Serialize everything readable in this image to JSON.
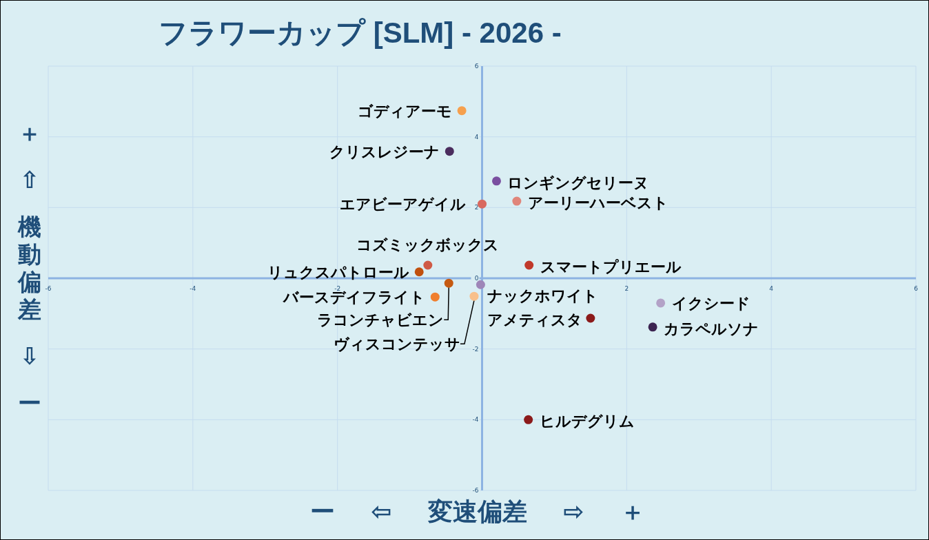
{
  "chart_data": {
    "type": "scatter",
    "title": "フラワーカップ [SLM]  - 2026 -",
    "xlabel": "ー ⇦ 変速偏差 ⇨ ＋",
    "ylabel": "＋ ⇧ 機動偏差 ⇩ ー",
    "xlim": [
      -6,
      6
    ],
    "ylim": [
      -6,
      6
    ],
    "xticks": [
      -6,
      -4,
      -2,
      2,
      4,
      6
    ],
    "yticks": [
      -6,
      -4,
      -2,
      0,
      2,
      4,
      6
    ],
    "grid": true,
    "legend": false,
    "marker": "circle",
    "series": [
      {
        "name": "ゴディアーモ",
        "color": "#f6a04d",
        "x": [
          -0.28
        ],
        "values": [
          4.74
        ]
      },
      {
        "name": "クリスレジーナ",
        "color": "#4b2d5e",
        "x": [
          -0.45
        ],
        "values": [
          3.59
        ]
      },
      {
        "name": "ロンギングセリーヌ",
        "color": "#7a4fa0",
        "x": [
          0.2
        ],
        "values": [
          2.75
        ]
      },
      {
        "name": "エアビーアゲイル",
        "color": "#d9695f",
        "x": [
          0.0
        ],
        "values": [
          2.1
        ]
      },
      {
        "name": "アーリーハーベスト",
        "color": "#e0857a",
        "x": [
          0.48
        ],
        "values": [
          2.18
        ]
      },
      {
        "name": "コズミックボックス",
        "color": "#cf5a45",
        "x": [
          -0.75
        ],
        "values": [
          0.37
        ]
      },
      {
        "name": "リュクスパトロール",
        "color": "#c0500e",
        "x": [
          -0.87
        ],
        "values": [
          0.18
        ]
      },
      {
        "name": "スマートプリエール",
        "color": "#c0392b",
        "x": [
          0.65
        ],
        "values": [
          0.37
        ]
      },
      {
        "name": "ラコンチャビエン",
        "color": "#c55a11",
        "x": [
          -0.46
        ],
        "values": [
          -0.14
        ]
      },
      {
        "name": "ナックホワイト",
        "color": "#9e86b8",
        "x": [
          -0.02
        ],
        "values": [
          -0.18
        ]
      },
      {
        "name": "バースデイフライト",
        "color": "#f07f2e",
        "x": [
          -0.65
        ],
        "values": [
          -0.53
        ]
      },
      {
        "name": "ヴィスコンテッサ",
        "color": "#f8c08a",
        "x": [
          -0.11
        ],
        "values": [
          -0.51
        ]
      },
      {
        "name": "イクシード",
        "color": "#b3a2c7",
        "x": [
          2.47
        ],
        "values": [
          -0.7
        ]
      },
      {
        "name": "アメティスタ",
        "color": "#8b1a1a",
        "x": [
          1.5
        ],
        "values": [
          -1.13
        ]
      },
      {
        "name": "カラペルソナ",
        "color": "#3b2350",
        "x": [
          2.36
        ],
        "values": [
          -1.38
        ]
      },
      {
        "name": "ヒルデグリム",
        "color": "#8b1a1a",
        "x": [
          0.64
        ],
        "values": [
          -4.0
        ]
      }
    ]
  }
}
